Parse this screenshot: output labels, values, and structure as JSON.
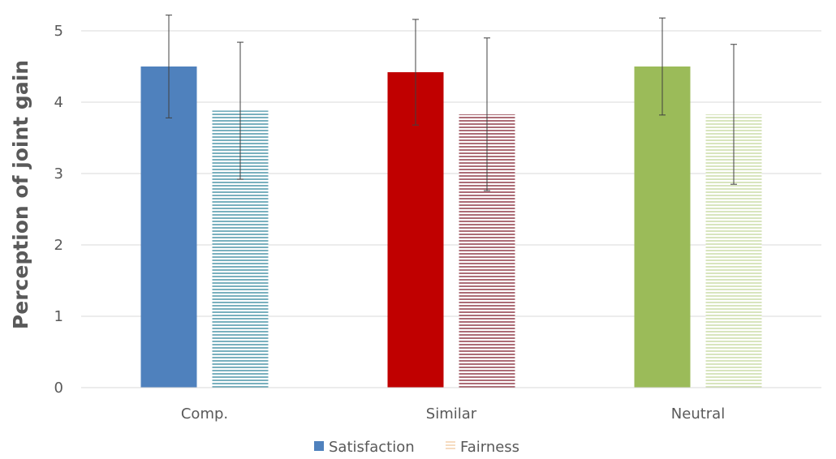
{
  "chart_data": {
    "type": "bar",
    "title": "",
    "xlabel": "",
    "ylabel": "Perception of joint gain",
    "ylim": [
      0,
      5
    ],
    "yticks": [
      "0",
      "1",
      "2",
      "3",
      "4",
      "5"
    ],
    "grid": true,
    "legend_position": "bottom",
    "categories": [
      "Comp.",
      "Similar",
      "Neutral"
    ],
    "bar_colors": [
      "#4f81bd",
      "#c00000",
      "#9bbb59"
    ],
    "hatch_colors": [
      "#31859c",
      "#7f1d2d",
      "#c4d79b"
    ],
    "series": [
      {
        "name": "Satisfaction",
        "style": "solid",
        "values": [
          4.5,
          4.42,
          4.5
        ],
        "errors": [
          0.72,
          0.74,
          0.68
        ]
      },
      {
        "name": "Fairness",
        "style": "horizontal-lines",
        "values": [
          3.88,
          3.83,
          3.83
        ],
        "errors": [
          0.96,
          1.07,
          0.98
        ]
      }
    ],
    "legend_colors": [
      "#4f81bd",
      "#f2c9a0"
    ]
  }
}
